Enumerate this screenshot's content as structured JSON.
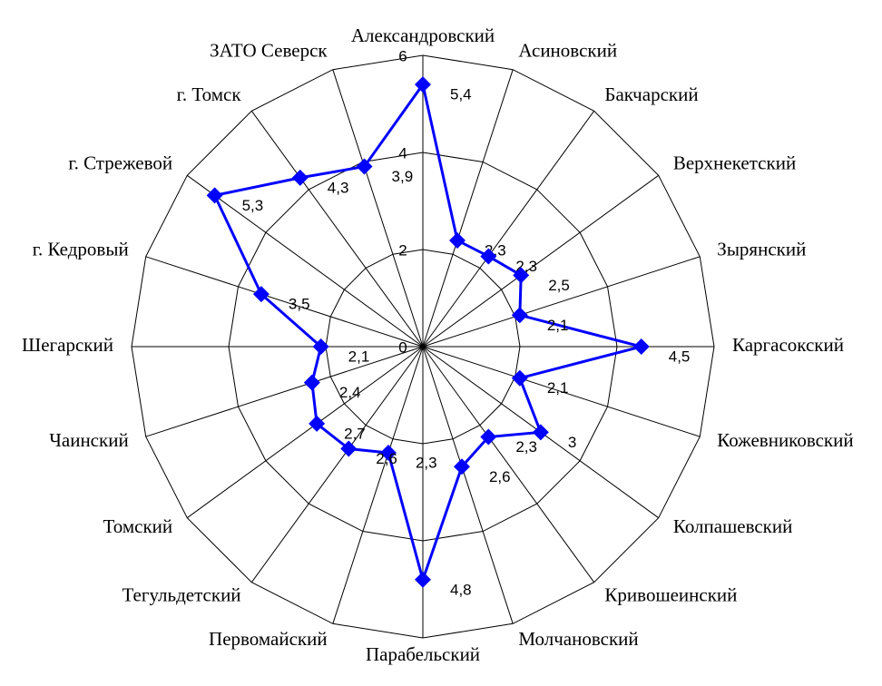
{
  "chart_data": {
    "type": "radar",
    "categories": [
      "Александровский",
      "Асиновский",
      "Бакчарский",
      "Верхнекетский",
      "Зырянский",
      "Каргасокский",
      "Кожевниковский",
      "Колпашевский",
      "Кривошеинский",
      "Молчановский",
      "Парабельский",
      "Первомайский",
      "Тегульдетский",
      "Томский",
      "Чаинский",
      "Шегарский",
      "г. Кедровый",
      "г. Стрежевой",
      "г. Томск",
      "ЗАТО Северск"
    ],
    "series": [
      {
        "color": "#0000ff",
        "values": [
          5.4,
          2.3,
          2.3,
          2.5,
          2.1,
          4.5,
          2.1,
          3,
          2.3,
          2.6,
          4.8,
          2.3,
          2.6,
          2.7,
          2.4,
          2.1,
          3.5,
          5.3,
          4.3,
          3.9
        ],
        "value_labels": [
          "5,4",
          "2,3",
          "2,3",
          "2,5",
          "2,1",
          "4,5",
          "2,1",
          "3",
          "2,3",
          "2,6",
          "4,8",
          "2,3",
          "2,6",
          "2,7",
          "2,4",
          "2,1",
          "3,5",
          "5,3",
          "4,3",
          "3,9"
        ]
      }
    ],
    "ylim": [
      0,
      6
    ],
    "yticks": [
      0,
      2,
      4,
      6
    ],
    "grid": true
  }
}
